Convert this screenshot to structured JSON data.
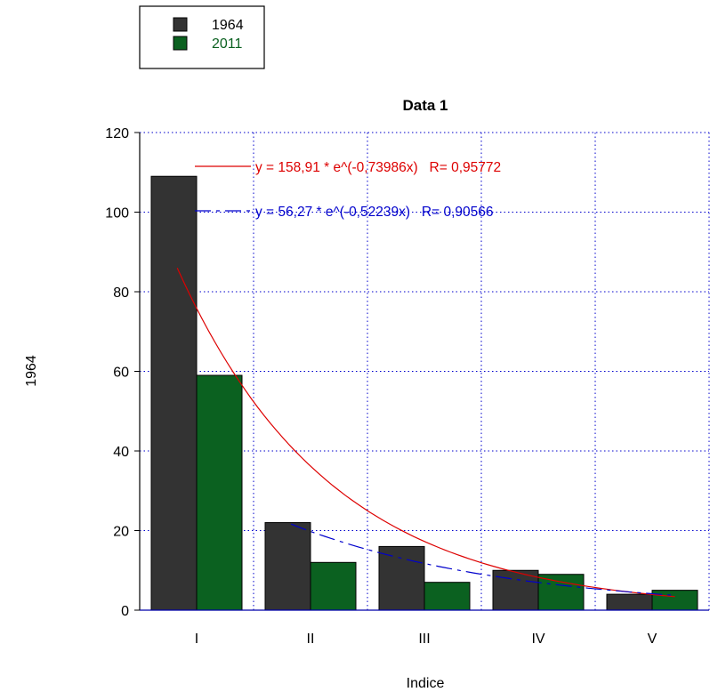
{
  "chart_data": {
    "type": "bar",
    "title": "Data 1",
    "xlabel": "Indice",
    "ylabel": "1964",
    "categories": [
      "I",
      "II",
      "III",
      "IV",
      "V"
    ],
    "ylim": [
      0,
      120
    ],
    "yticks": [
      0,
      20,
      40,
      60,
      80,
      100,
      120
    ],
    "grid": true,
    "legend_position": "top-left",
    "series": [
      {
        "name": "1964",
        "values": [
          109,
          22,
          16,
          10,
          4
        ],
        "color": "#333333"
      },
      {
        "name": "2011",
        "values": [
          59,
          12,
          7,
          9,
          5
        ],
        "color": "#0b6120"
      }
    ],
    "fits": [
      {
        "label": "y = 158,91 * e^(-0,73986x)   R= 0,95772",
        "a": 158.91,
        "b": -0.73986,
        "color": "#dd0000",
        "dash": "solid"
      },
      {
        "label": "y = 56,27 * e^(-0,52239x)   R= 0,90566",
        "a": 56.27,
        "b": -0.52239,
        "color": "#0000cc",
        "dash": "dashed"
      }
    ]
  }
}
